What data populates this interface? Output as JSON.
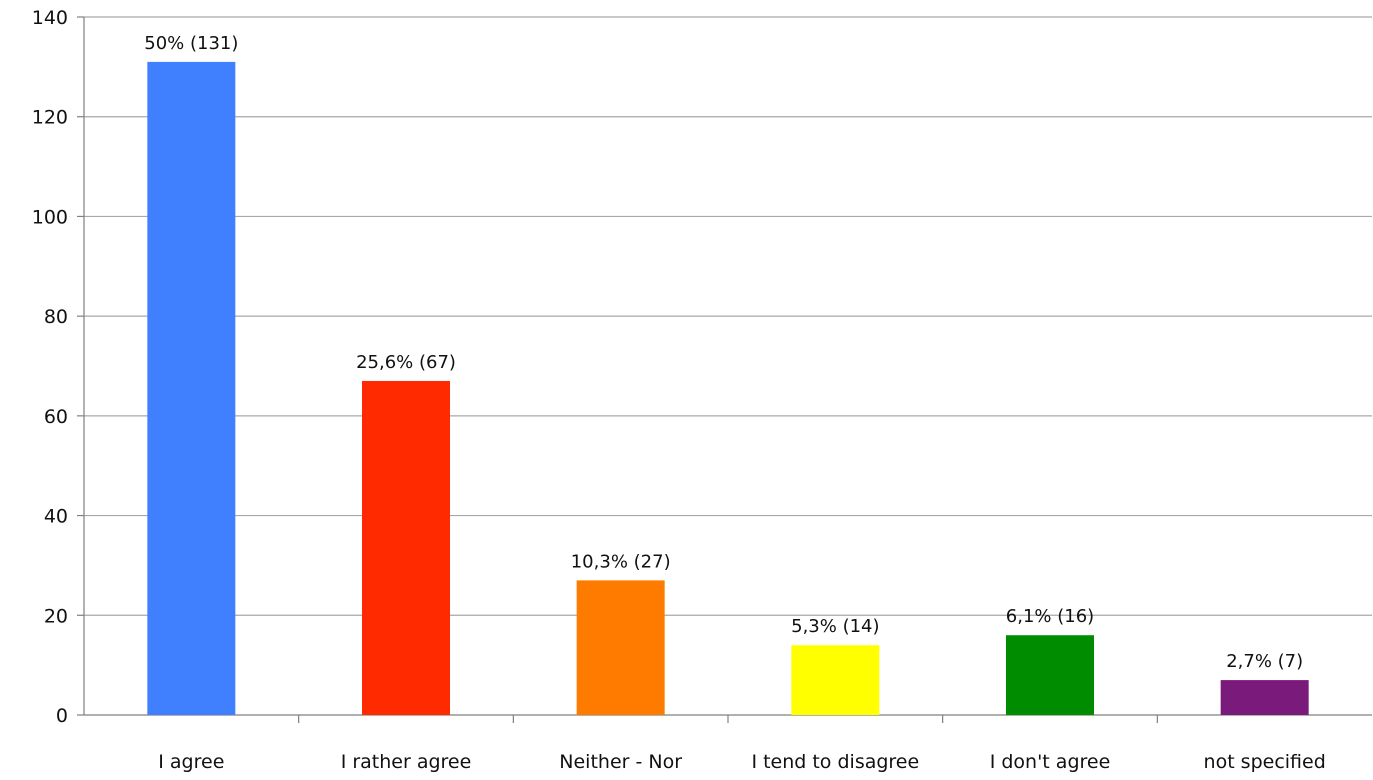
{
  "chart_data": {
    "type": "bar",
    "title": "",
    "xlabel": "",
    "ylabel": "",
    "categories": [
      "I agree",
      "I rather agree",
      "Neither - Nor",
      "I tend to disagree",
      "I don't agree",
      "not specified"
    ],
    "values": [
      131,
      67,
      27,
      14,
      16,
      7
    ],
    "data_labels": [
      "50% (131)",
      "25,6% (67)",
      "10,3% (27)",
      "5,3% (14)",
      "6,1% (16)",
      "2,7% (7)"
    ],
    "colors": [
      "#4080ff",
      "#ff2a00",
      "#ff7b00",
      "#ffff00",
      "#008c00",
      "#7a1a7a"
    ],
    "ylim": [
      0,
      140
    ],
    "yticks": [
      0,
      20,
      40,
      60,
      80,
      100,
      120,
      140
    ],
    "grid": true,
    "legend": "none"
  }
}
